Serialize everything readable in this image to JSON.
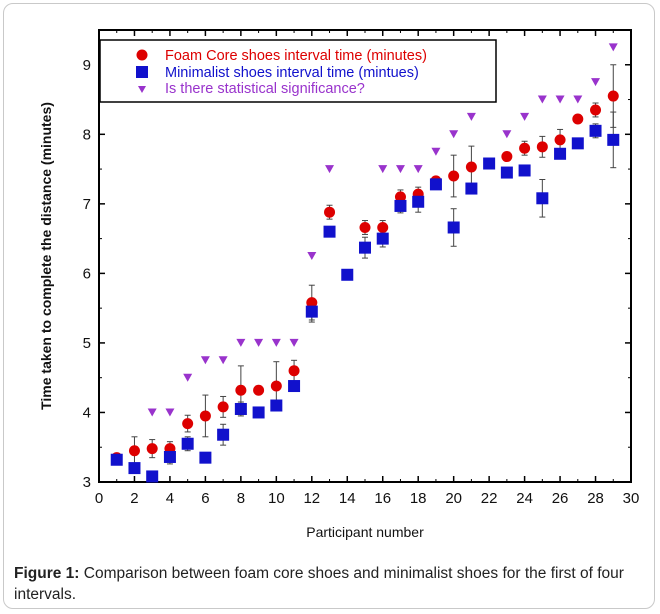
{
  "chart_data": {
    "type": "scatter",
    "xlabel": "Participant number",
    "ylabel": "Time taken to complete the distance (minutes)",
    "xlim": [
      0,
      30
    ],
    "ylim": [
      3,
      9.5
    ],
    "x_ticks": [
      0,
      2,
      4,
      6,
      8,
      10,
      12,
      14,
      16,
      18,
      20,
      22,
      24,
      26,
      28,
      30
    ],
    "y_ticks": [
      3,
      4,
      5,
      6,
      7,
      8,
      9
    ],
    "legend_position": "top-left",
    "series": [
      {
        "name": "Foam Core shoes interval time (minutes)",
        "color": "#dd0000",
        "marker": "circle",
        "x": [
          1,
          2,
          3,
          4,
          5,
          6,
          7,
          8,
          9,
          10,
          11,
          12,
          13,
          15,
          16,
          17,
          18,
          19,
          20,
          21,
          23,
          24,
          25,
          26,
          27,
          28,
          29
        ],
        "y": [
          3.35,
          3.45,
          3.48,
          3.48,
          3.84,
          3.95,
          4.08,
          4.32,
          4.32,
          4.38,
          4.6,
          5.58,
          6.88,
          6.66,
          6.66,
          7.1,
          7.14,
          7.33,
          7.4,
          7.53,
          7.68,
          7.8,
          7.82,
          7.92,
          8.22,
          8.35,
          8.55
        ],
        "error": [
          0,
          0.2,
          0.13,
          0.1,
          0.12,
          0.3,
          0.15,
          0.35,
          0,
          0.35,
          0.15,
          0.25,
          0.1,
          0.1,
          0.1,
          0.1,
          0.1,
          0,
          0.3,
          0.3,
          0.05,
          0.1,
          0.15,
          0.15,
          0,
          0.1,
          0.45
        ]
      },
      {
        "name": "Minimalist shoes interval time (mintues)",
        "color": "#1111cc",
        "marker": "square",
        "x": [
          1,
          2,
          3,
          4,
          5,
          6,
          7,
          8,
          9,
          10,
          11,
          12,
          13,
          14,
          15,
          16,
          17,
          18,
          19,
          20,
          21,
          22,
          23,
          24,
          25,
          26,
          27,
          28,
          29
        ],
        "y": [
          3.32,
          3.2,
          3.08,
          3.36,
          3.55,
          3.35,
          3.68,
          4.05,
          4.0,
          4.1,
          4.38,
          5.45,
          6.6,
          5.98,
          6.37,
          6.5,
          6.97,
          7.03,
          7.28,
          6.66,
          7.22,
          7.58,
          7.45,
          7.48,
          7.08,
          7.72,
          7.87,
          8.05,
          7.92
        ],
        "error": [
          0,
          0,
          0,
          0.1,
          0.1,
          0,
          0.15,
          0.1,
          0,
          0,
          0,
          0.15,
          0,
          0,
          0.15,
          0.12,
          0.1,
          0.15,
          0.05,
          0.27,
          0,
          0,
          0.05,
          0,
          0.27,
          0,
          0,
          0.1,
          0.4
        ]
      },
      {
        "name": "Is there statistical significance?",
        "color": "#9933cc",
        "marker": "triangle-down",
        "x": [
          3,
          4,
          5,
          6,
          7,
          8,
          9,
          10,
          11,
          12,
          13,
          16,
          17,
          18,
          19,
          20,
          21,
          23,
          24,
          25,
          26,
          27,
          28,
          29
        ],
        "y": [
          4.0,
          4.0,
          4.5,
          4.75,
          4.75,
          5.0,
          5.0,
          5.0,
          5.0,
          6.25,
          7.5,
          7.5,
          7.5,
          7.5,
          7.75,
          8.0,
          8.25,
          8.0,
          8.25,
          8.5,
          8.5,
          8.5,
          8.75,
          9.25
        ]
      }
    ]
  },
  "caption": {
    "label": "Figure 1:",
    "text": " Comparison between foam core shoes and minimalist shoes for the first of four intervals."
  }
}
